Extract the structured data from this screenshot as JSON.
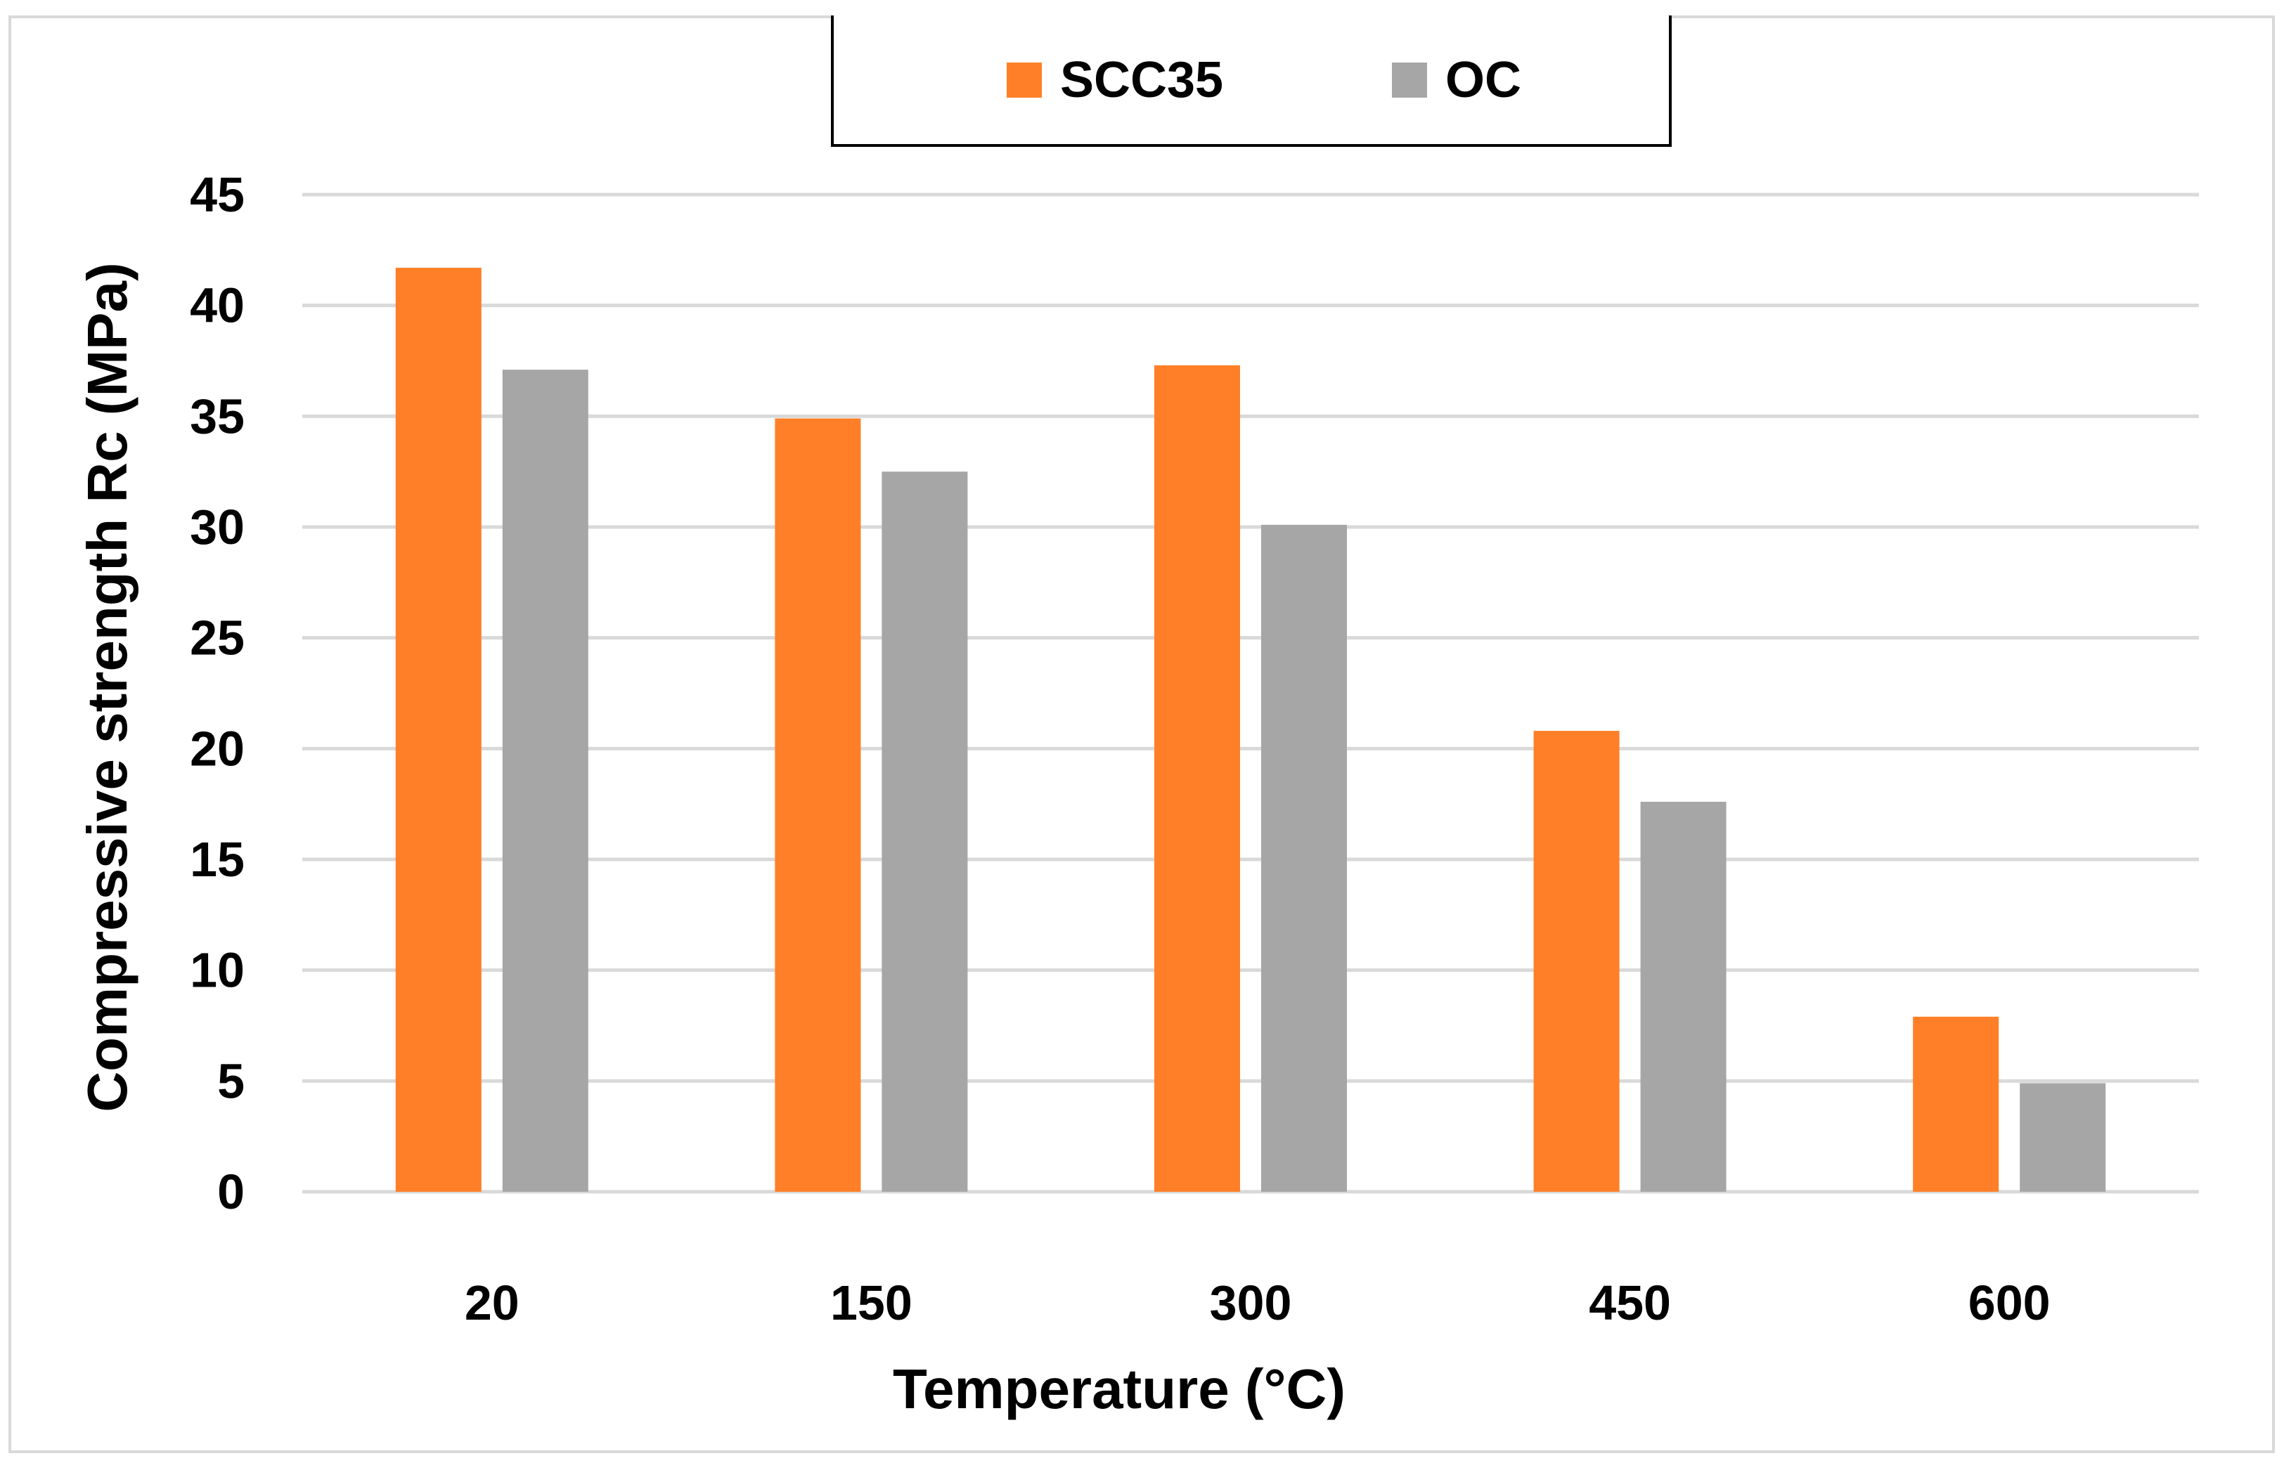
{
  "chart_data": {
    "type": "bar",
    "title": "",
    "xlabel": "Temperature (°C)",
    "ylabel": "Compressive strength Rc (MPa)",
    "categories": [
      "20",
      "150",
      "300",
      "450",
      "600"
    ],
    "series": [
      {
        "name": "SCC35",
        "color": "#fe7f27",
        "values": [
          41.7,
          34.9,
          37.3,
          20.8,
          7.9
        ]
      },
      {
        "name": "OC",
        "color": "#a6a6a6",
        "values": [
          37.1,
          32.5,
          30.1,
          17.6,
          4.9
        ]
      }
    ],
    "ylim": [
      0,
      45
    ],
    "yticks": [
      0,
      5,
      10,
      15,
      20,
      25,
      30,
      35,
      40,
      45
    ],
    "grid": true,
    "legend_position": "top-center",
    "gridline_color": "#d9d9d9"
  }
}
